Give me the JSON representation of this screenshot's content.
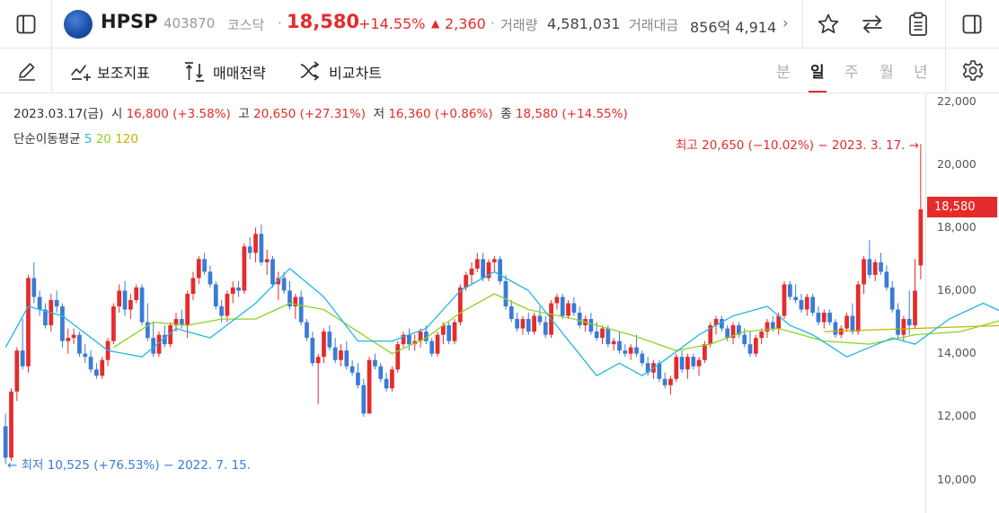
{
  "header": {
    "stock_name": "HPSP",
    "stock_code": "403870",
    "market": "코스닥",
    "separator": "·",
    "price": "18,580",
    "change_pct": "+14.55%",
    "change_arrow": "▲",
    "change_value": "2,360",
    "volume_label": "거래량",
    "volume_value": "4,581,031",
    "amount_label": "거래대금",
    "amount_value": "856억 4,914",
    "more_glyph": "›"
  },
  "toolbar": {
    "indicator_label": "보조지표",
    "strategy_label": "매매전략",
    "compare_label": "비교차트",
    "periods": [
      "분",
      "일",
      "주",
      "월",
      "년"
    ],
    "active_period": "일"
  },
  "chart_info": {
    "date": "2023.03.17(금)",
    "open_label": "시",
    "open_value": "16,800 (+3.58%)",
    "high_label": "고",
    "high_value": "20,650 (+27.31%)",
    "low_label": "저",
    "low_value": "16,360 (+0.86%)",
    "close_label": "종",
    "close_value": "18,580 (+14.55%)",
    "ma_label": "단순이동평균",
    "ma_periods": [
      "5",
      "20",
      "120"
    ]
  },
  "annotations": {
    "high": "최고 20,650 (−10.02%) − 2023. 3. 17. →",
    "low": "← 최저 10,525 (+76.53%) − 2022. 7. 15."
  },
  "colors": {
    "up": "#e52b2b",
    "down": "#3a7bd5",
    "ma5": "#21b6e8",
    "ma20": "#8ed320",
    "ma120": "#c8b000"
  },
  "icons": {
    "sidebar_left": "sidebar-left-icon",
    "favorite": "star-icon",
    "swap": "swap-arrows-icon",
    "clipboard": "clipboard-icon",
    "sidebar_right": "sidebar-right-icon",
    "draw": "pencil-icon",
    "indicator": "line-chart-plus-icon",
    "strategy": "sort-arrows-icon",
    "compare": "crossing-arrows-icon",
    "settings": "gear-icon"
  },
  "chart_data": {
    "type": "candlestick",
    "y_ticks": [
      "22,000",
      "20,000",
      "18,000",
      "16,000",
      "14,000",
      "12,000",
      "10,000"
    ],
    "ylim": [
      9700,
      22100
    ],
    "current_price_tag": "18,580",
    "high": {
      "value": 20650,
      "date": "2023. 3. 17."
    },
    "low": {
      "value": 10525,
      "date": "2022. 7. 15."
    },
    "last_candle": {
      "date": "2023.03.17",
      "open": 16800,
      "high": 20650,
      "low": 16360,
      "close": 18580
    },
    "ohlc": [
      [
        11700,
        12100,
        10500,
        10700
      ],
      [
        10700,
        12900,
        10600,
        12800
      ],
      [
        12800,
        14200,
        12500,
        14100
      ],
      [
        14100,
        15100,
        13500,
        13600
      ],
      [
        13600,
        16500,
        13400,
        16400
      ],
      [
        16400,
        16900,
        15600,
        15800
      ],
      [
        15800,
        16000,
        15200,
        15400
      ],
      [
        15400,
        15600,
        14800,
        14900
      ],
      [
        14900,
        15900,
        14700,
        15700
      ],
      [
        15700,
        16000,
        15300,
        15500
      ],
      [
        15500,
        15600,
        14200,
        14400
      ],
      [
        14400,
        14800,
        14000,
        14500
      ],
      [
        14500,
        14800,
        14300,
        14600
      ],
      [
        14600,
        14700,
        13900,
        14000
      ],
      [
        14000,
        14300,
        13700,
        13900
      ],
      [
        13900,
        14100,
        13400,
        13500
      ],
      [
        13500,
        13700,
        13200,
        13300
      ],
      [
        13300,
        13900,
        13200,
        13800
      ],
      [
        13800,
        14500,
        13600,
        14400
      ],
      [
        14400,
        15600,
        14300,
        15500
      ],
      [
        15500,
        16200,
        15300,
        16000
      ],
      [
        16000,
        16300,
        15200,
        15400
      ],
      [
        15400,
        15900,
        15100,
        15700
      ],
      [
        15700,
        16200,
        15600,
        16100
      ],
      [
        16100,
        16200,
        14900,
        15000
      ],
      [
        15000,
        15600,
        14400,
        14500
      ],
      [
        14500,
        15000,
        13900,
        14000
      ],
      [
        14000,
        14700,
        13900,
        14600
      ],
      [
        14600,
        14900,
        14200,
        14300
      ],
      [
        14300,
        15000,
        14200,
        14900
      ],
      [
        14900,
        15300,
        14700,
        15100
      ],
      [
        15100,
        15400,
        14800,
        14900
      ],
      [
        14900,
        16000,
        14500,
        15900
      ],
      [
        15900,
        16600,
        15700,
        16400
      ],
      [
        16400,
        17100,
        16200,
        17000
      ],
      [
        17000,
        17200,
        16500,
        16600
      ],
      [
        16600,
        16800,
        16100,
        16200
      ],
      [
        16200,
        16300,
        15400,
        15500
      ],
      [
        15500,
        15700,
        15000,
        15200
      ],
      [
        15200,
        16000,
        15000,
        15900
      ],
      [
        15900,
        16300,
        15600,
        16100
      ],
      [
        16100,
        16300,
        15800,
        16000
      ],
      [
        16000,
        17500,
        15900,
        17400
      ],
      [
        17400,
        17700,
        17000,
        17200
      ],
      [
        17200,
        18000,
        16900,
        17800
      ],
      [
        17800,
        18100,
        16800,
        16900
      ],
      [
        16900,
        17300,
        16500,
        17000
      ],
      [
        17000,
        17100,
        16100,
        16200
      ],
      [
        16200,
        16600,
        15700,
        16400
      ],
      [
        16400,
        16600,
        15900,
        16000
      ],
      [
        16000,
        16300,
        15400,
        15500
      ],
      [
        15500,
        15900,
        15100,
        15800
      ],
      [
        15800,
        16000,
        14900,
        15000
      ],
      [
        15000,
        15100,
        14400,
        14500
      ],
      [
        14500,
        14700,
        13600,
        13700
      ],
      [
        13700,
        14000,
        12400,
        13900
      ],
      [
        13900,
        14800,
        13700,
        14700
      ],
      [
        14700,
        14900,
        14100,
        14200
      ],
      [
        14200,
        14500,
        13700,
        13800
      ],
      [
        13800,
        14300,
        13600,
        14100
      ],
      [
        14100,
        14400,
        13500,
        13600
      ],
      [
        13600,
        13800,
        13300,
        13400
      ],
      [
        13400,
        13700,
        12900,
        13000
      ],
      [
        13000,
        13200,
        12000,
        12100
      ],
      [
        12100,
        13900,
        12100,
        13800
      ],
      [
        13800,
        14000,
        13500,
        13600
      ],
      [
        13600,
        13700,
        13100,
        13200
      ],
      [
        13200,
        13400,
        12800,
        12900
      ],
      [
        12900,
        13600,
        12800,
        13500
      ],
      [
        13500,
        14400,
        13400,
        14300
      ],
      [
        14300,
        14700,
        14200,
        14600
      ],
      [
        14600,
        14800,
        14100,
        14300
      ],
      [
        14300,
        14600,
        14100,
        14400
      ],
      [
        14400,
        14800,
        14200,
        14700
      ],
      [
        14700,
        14900,
        14300,
        14400
      ],
      [
        14400,
        14500,
        13900,
        14000
      ],
      [
        14000,
        14700,
        13900,
        14600
      ],
      [
        14600,
        15000,
        14300,
        14900
      ],
      [
        14900,
        15000,
        14300,
        14400
      ],
      [
        14400,
        15100,
        14300,
        15000
      ],
      [
        15000,
        16200,
        14900,
        16100
      ],
      [
        16100,
        16600,
        16000,
        16500
      ],
      [
        16500,
        16900,
        16200,
        16700
      ],
      [
        16700,
        17200,
        16600,
        17000
      ],
      [
        17000,
        17200,
        16300,
        16400
      ],
      [
        16400,
        17000,
        16300,
        16900
      ],
      [
        16900,
        17100,
        16600,
        17000
      ],
      [
        17000,
        17100,
        16200,
        16300
      ],
      [
        16300,
        16500,
        15400,
        15500
      ],
      [
        15500,
        15700,
        15000,
        15100
      ],
      [
        15100,
        15300,
        14700,
        14800
      ],
      [
        14800,
        15200,
        14600,
        15100
      ],
      [
        15100,
        15300,
        14600,
        14700
      ],
      [
        14700,
        15300,
        14600,
        15200
      ],
      [
        15200,
        15500,
        14900,
        15000
      ],
      [
        15000,
        15200,
        14500,
        14600
      ],
      [
        14600,
        15700,
        14500,
        15600
      ],
      [
        15600,
        15900,
        15400,
        15800
      ],
      [
        15800,
        15900,
        15100,
        15200
      ],
      [
        15200,
        15700,
        15100,
        15600
      ],
      [
        15600,
        15800,
        15200,
        15300
      ],
      [
        15300,
        15500,
        14800,
        14900
      ],
      [
        14900,
        15200,
        14700,
        15100
      ],
      [
        15100,
        15300,
        14600,
        14700
      ],
      [
        14700,
        15000,
        14400,
        14500
      ],
      [
        14500,
        14900,
        14300,
        14800
      ],
      [
        14800,
        14900,
        14200,
        14300
      ],
      [
        14300,
        14500,
        14100,
        14400
      ],
      [
        14400,
        14700,
        14000,
        14100
      ],
      [
        14100,
        14300,
        13900,
        14000
      ],
      [
        14000,
        14300,
        13800,
        14200
      ],
      [
        14200,
        14600,
        13900,
        14000
      ],
      [
        14000,
        14100,
        13600,
        13700
      ],
      [
        13700,
        13900,
        13300,
        13400
      ],
      [
        13400,
        13800,
        13200,
        13700
      ],
      [
        13700,
        13800,
        13100,
        13200
      ],
      [
        13200,
        13400,
        12900,
        13000
      ],
      [
        13000,
        13300,
        12700,
        13200
      ],
      [
        13200,
        14000,
        13100,
        13900
      ],
      [
        13900,
        14100,
        13400,
        13500
      ],
      [
        13500,
        14000,
        13200,
        13900
      ],
      [
        13900,
        14000,
        13500,
        13600
      ],
      [
        13600,
        13900,
        13300,
        13800
      ],
      [
        13800,
        14400,
        13700,
        14300
      ],
      [
        14300,
        15000,
        14200,
        14900
      ],
      [
        14900,
        15200,
        14600,
        15100
      ],
      [
        15100,
        15200,
        14700,
        14800
      ],
      [
        14800,
        14900,
        14400,
        14500
      ],
      [
        14500,
        15000,
        14300,
        14900
      ],
      [
        14900,
        15000,
        14500,
        14600
      ],
      [
        14600,
        14800,
        14200,
        14300
      ],
      [
        14300,
        14700,
        13900,
        14000
      ],
      [
        14000,
        14600,
        13900,
        14500
      ],
      [
        14500,
        14800,
        14300,
        14700
      ],
      [
        14700,
        15100,
        14500,
        15000
      ],
      [
        15000,
        15200,
        14700,
        14800
      ],
      [
        14800,
        15300,
        14600,
        15200
      ],
      [
        15200,
        16300,
        15100,
        16200
      ],
      [
        16200,
        16300,
        15700,
        15800
      ],
      [
        15800,
        16200,
        15600,
        15700
      ],
      [
        15700,
        15900,
        15300,
        15400
      ],
      [
        15400,
        15900,
        15200,
        15800
      ],
      [
        15800,
        15900,
        15200,
        15300
      ],
      [
        15300,
        15500,
        14900,
        15000
      ],
      [
        15000,
        15400,
        14800,
        15300
      ],
      [
        15300,
        15400,
        14900,
        15000
      ],
      [
        15000,
        15100,
        14500,
        14600
      ],
      [
        14600,
        14900,
        14500,
        14800
      ],
      [
        14800,
        15300,
        14700,
        15200
      ],
      [
        15200,
        15600,
        14600,
        14700
      ],
      [
        14700,
        16300,
        14600,
        16200
      ],
      [
        16200,
        17100,
        15900,
        17000
      ],
      [
        17000,
        17600,
        16400,
        16500
      ],
      [
        16500,
        17000,
        16300,
        16900
      ],
      [
        16900,
        17200,
        16500,
        16600
      ],
      [
        16600,
        16800,
        16000,
        16100
      ],
      [
        16100,
        16300,
        15300,
        15400
      ],
      [
        15400,
        15600,
        14500,
        14600
      ],
      [
        14600,
        15200,
        14400,
        15100
      ],
      [
        15100,
        16000,
        14600,
        14900
      ],
      [
        14900,
        17000,
        14800,
        16000
      ],
      [
        16800,
        20650,
        16360,
        18580
      ]
    ],
    "ma5": [
      [
        0,
        14200
      ],
      [
        4,
        15500
      ],
      [
        10,
        15200
      ],
      [
        18,
        14100
      ],
      [
        24,
        13900
      ],
      [
        30,
        14800
      ],
      [
        36,
        14500
      ],
      [
        44,
        15600
      ],
      [
        50,
        16700
      ],
      [
        56,
        15800
      ],
      [
        62,
        14400
      ],
      [
        68,
        14400
      ],
      [
        74,
        14800
      ],
      [
        80,
        16000
      ],
      [
        86,
        16600
      ],
      [
        92,
        16000
      ],
      [
        100,
        14200
      ],
      [
        104,
        13300
      ],
      [
        108,
        13700
      ],
      [
        112,
        13300
      ],
      [
        116,
        13800
      ],
      [
        122,
        14600
      ],
      [
        128,
        15200
      ],
      [
        134,
        15500
      ],
      [
        138,
        14900
      ],
      [
        142,
        14600
      ],
      [
        148,
        13900
      ],
      [
        152,
        14200
      ],
      [
        156,
        14500
      ],
      [
        160,
        14300
      ],
      [
        166,
        15100
      ],
      [
        172,
        15600
      ],
      [
        178,
        15100
      ],
      [
        182,
        14800
      ],
      [
        188,
        15100
      ],
      [
        192,
        16500
      ],
      [
        196,
        16400
      ],
      [
        200,
        16800
      ],
      [
        204,
        16200
      ]
    ],
    "ma20": [
      [
        19,
        14200
      ],
      [
        26,
        15000
      ],
      [
        32,
        14900
      ],
      [
        38,
        15100
      ],
      [
        44,
        15100
      ],
      [
        50,
        15600
      ],
      [
        56,
        15400
      ],
      [
        62,
        14700
      ],
      [
        68,
        14000
      ],
      [
        74,
        14500
      ],
      [
        80,
        15300
      ],
      [
        86,
        15900
      ],
      [
        92,
        15400
      ],
      [
        100,
        15100
      ],
      [
        110,
        14600
      ],
      [
        118,
        14100
      ],
      [
        124,
        14300
      ],
      [
        130,
        14700
      ],
      [
        136,
        14800
      ],
      [
        144,
        14400
      ],
      [
        152,
        14300
      ],
      [
        160,
        14600
      ],
      [
        168,
        14700
      ],
      [
        176,
        15100
      ],
      [
        182,
        15000
      ],
      [
        190,
        15500
      ],
      [
        196,
        15700
      ],
      [
        200,
        16100
      ],
      [
        204,
        16000
      ]
    ],
    "ma120": [
      [
        144,
        14700
      ],
      [
        160,
        14800
      ],
      [
        176,
        14900
      ],
      [
        190,
        14900
      ],
      [
        204,
        14900
      ]
    ]
  }
}
